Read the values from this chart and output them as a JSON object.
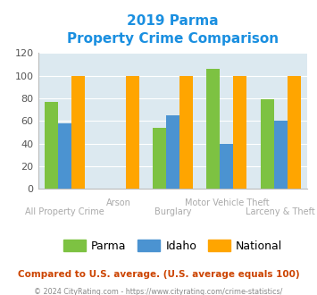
{
  "title_line1": "2019 Parma",
  "title_line2": "Property Crime Comparison",
  "categories": [
    "All Property Crime",
    "Arson",
    "Burglary",
    "Motor Vehicle Theft",
    "Larceny & Theft"
  ],
  "parma": [
    77,
    0,
    54,
    106,
    79
  ],
  "idaho": [
    58,
    0,
    65,
    40,
    60
  ],
  "national": [
    100,
    100,
    100,
    100,
    100
  ],
  "parma_color": "#7dc242",
  "idaho_color": "#4b93d1",
  "national_color": "#ffa500",
  "ylim": [
    0,
    120
  ],
  "yticks": [
    0,
    20,
    40,
    60,
    80,
    100,
    120
  ],
  "bg_color": "#dce9f0",
  "title_color": "#1a8fe0",
  "xlabel_color": "#aaaaaa",
  "footer_note": "Compared to U.S. average. (U.S. average equals 100)",
  "footer_copy": "© 2024 CityRating.com - https://www.cityrating.com/crime-statistics/",
  "legend_labels": [
    "Parma",
    "Idaho",
    "National"
  ],
  "bar_width": 0.25
}
